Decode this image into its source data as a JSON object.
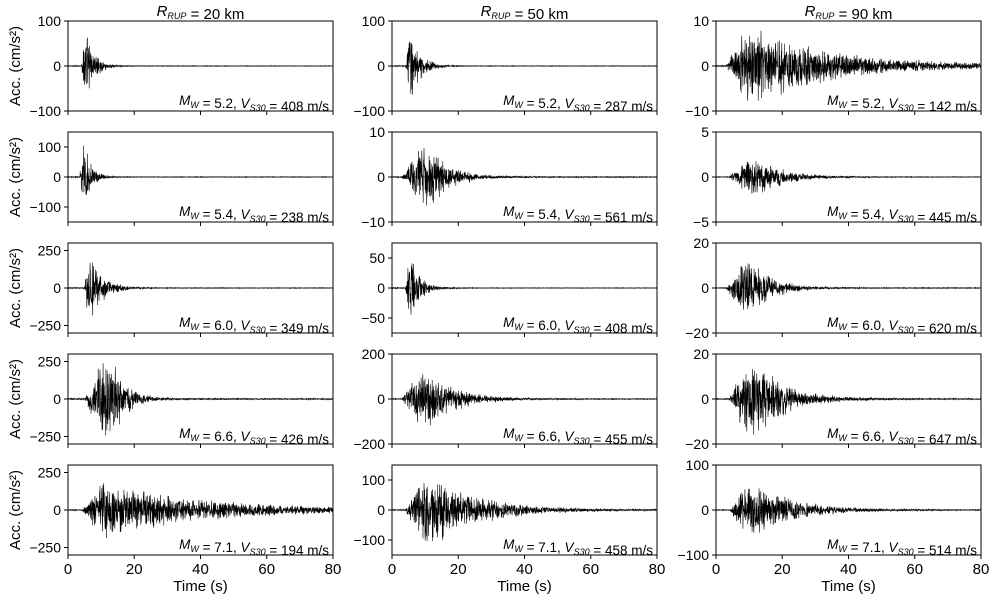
{
  "chart_data": {
    "type": "line",
    "description_of_grid": "5 rows x 3 columns of acceleration time histories",
    "xlabel": "Time (s)",
    "ylabel": "Acc. (cm/s²)",
    "xlim": [
      0,
      80
    ],
    "xticks": [
      0,
      20,
      40,
      60,
      80
    ],
    "columns": [
      {
        "title": "20 km"
      },
      {
        "title": "50 km"
      },
      {
        "title": "90 km"
      }
    ],
    "panels": [
      {
        "row": 0,
        "col": 0,
        "mw": "5.2",
        "vs30": "408",
        "ylim": [
          -100,
          100
        ],
        "yticks": [
          -100,
          0,
          100
        ],
        "onset": 4,
        "peak": 85,
        "mode": "impulse",
        "decay": 2.5,
        "dur": 12
      },
      {
        "row": 0,
        "col": 1,
        "mw": "5.2",
        "vs30": "287",
        "ylim": [
          -100,
          100
        ],
        "yticks": [
          -100,
          0,
          100
        ],
        "onset": 4,
        "peak": 85,
        "mode": "impulse",
        "decay": 3.0,
        "dur": 15
      },
      {
        "row": 0,
        "col": 2,
        "mw": "5.2",
        "vs30": "142",
        "ylim": [
          -10,
          10
        ],
        "yticks": [
          -10,
          0,
          10
        ],
        "onset": 3,
        "peak": 9,
        "mode": "long",
        "decay": 25,
        "dur": 80
      },
      {
        "row": 1,
        "col": 0,
        "mw": "5.4",
        "vs30": "238",
        "ylim": [
          -150,
          150
        ],
        "yticks": [
          -100,
          0,
          100
        ],
        "onset": 3.5,
        "peak": 140,
        "mode": "impulse",
        "decay": 2.0,
        "dur": 12
      },
      {
        "row": 1,
        "col": 1,
        "mw": "5.4",
        "vs30": "561",
        "ylim": [
          -10,
          10
        ],
        "yticks": [
          -10,
          0,
          10
        ],
        "onset": 3,
        "peak": 7,
        "mode": "burst",
        "decay": 6,
        "dur": 30
      },
      {
        "row": 1,
        "col": 2,
        "mw": "5.4",
        "vs30": "445",
        "ylim": [
          -5,
          5
        ],
        "yticks": [
          -5,
          0,
          5
        ],
        "onset": 4,
        "peak": 2.2,
        "mode": "burst",
        "decay": 8,
        "dur": 40
      },
      {
        "row": 2,
        "col": 0,
        "mw": "6.0",
        "vs30": "349",
        "ylim": [
          -300,
          300
        ],
        "yticks": [
          -250,
          0,
          250
        ],
        "onset": 5,
        "peak": 260,
        "mode": "impulse",
        "decay": 4,
        "dur": 25
      },
      {
        "row": 2,
        "col": 1,
        "mw": "6.0",
        "vs30": "408",
        "ylim": [
          -75,
          75
        ],
        "yticks": [
          -50,
          0,
          50
        ],
        "onset": 4,
        "peak": 60,
        "mode": "impulse",
        "decay": 3,
        "dur": 15
      },
      {
        "row": 2,
        "col": 2,
        "mw": "6.0",
        "vs30": "620",
        "ylim": [
          -20,
          20
        ],
        "yticks": [
          -20,
          0,
          20
        ],
        "onset": 3,
        "peak": 12,
        "mode": "burst",
        "decay": 6,
        "dur": 40
      },
      {
        "row": 3,
        "col": 0,
        "mw": "6.6",
        "vs30": "426",
        "ylim": [
          -300,
          300
        ],
        "yticks": [
          -250,
          0,
          250
        ],
        "onset": 5,
        "peak": 275,
        "mode": "burst",
        "decay": 4,
        "dur": 30
      },
      {
        "row": 3,
        "col": 1,
        "mw": "6.6",
        "vs30": "455",
        "ylim": [
          -200,
          200
        ],
        "yticks": [
          -200,
          0,
          200
        ],
        "onset": 3,
        "peak": 130,
        "mode": "burst",
        "decay": 8,
        "dur": 40
      },
      {
        "row": 3,
        "col": 2,
        "mw": "6.6",
        "vs30": "647",
        "ylim": [
          -20,
          20
        ],
        "yticks": [
          -20,
          0,
          20
        ],
        "onset": 4,
        "peak": 17,
        "mode": "burst",
        "decay": 9,
        "dur": 80
      },
      {
        "row": 4,
        "col": 0,
        "mw": "7.1",
        "vs30": "194",
        "ylim": [
          -300,
          300
        ],
        "yticks": [
          -250,
          0,
          250
        ],
        "onset": 4,
        "peak": 190,
        "mode": "long",
        "decay": 30,
        "dur": 80
      },
      {
        "row": 4,
        "col": 1,
        "mw": "7.1",
        "vs30": "458",
        "ylim": [
          -150,
          150
        ],
        "yticks": [
          -100,
          0,
          100
        ],
        "onset": 4,
        "peak": 120,
        "mode": "burst",
        "decay": 14,
        "dur": 60
      },
      {
        "row": 4,
        "col": 2,
        "mw": "7.1",
        "vs30": "514",
        "ylim": [
          -100,
          100
        ],
        "yticks": [
          -100,
          0,
          100
        ],
        "onset": 4,
        "peak": 60,
        "mode": "burst",
        "decay": 12,
        "dur": 60
      }
    ]
  }
}
